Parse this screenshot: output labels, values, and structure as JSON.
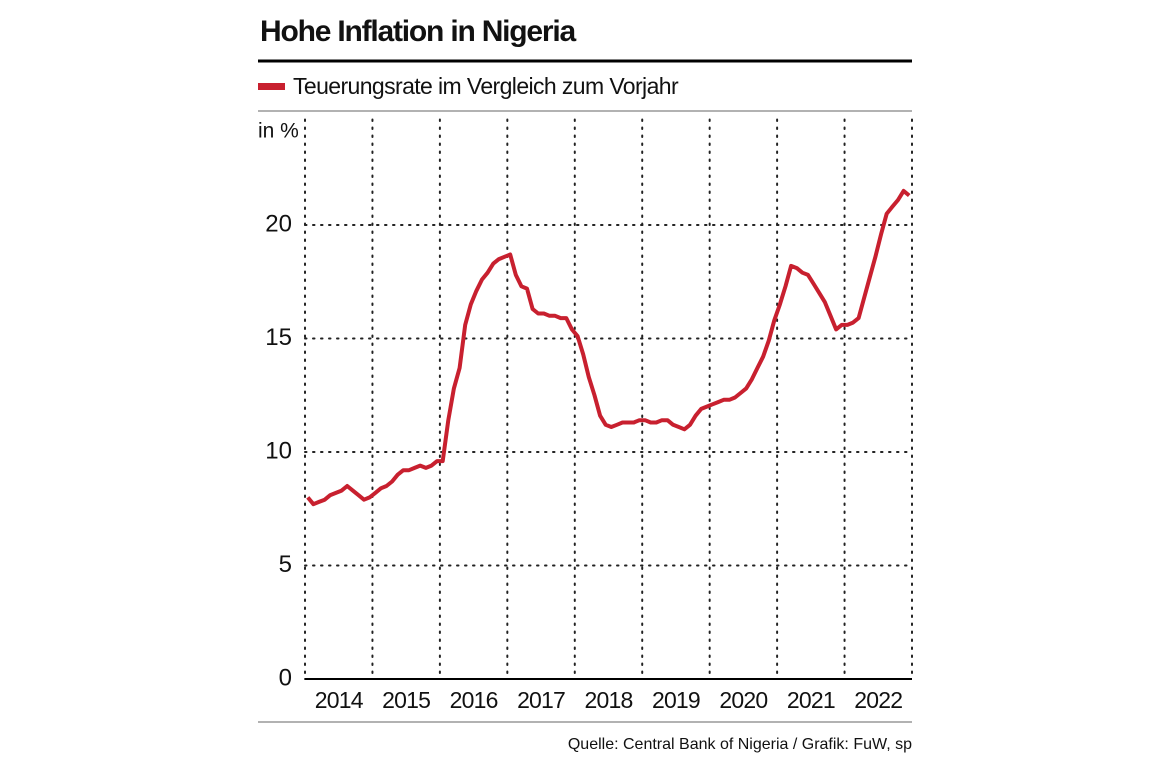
{
  "chart_data": {
    "type": "line",
    "title": "Hohe Inflation in Nigeria",
    "y_label": "in %",
    "source": "Quelle: Central Bank of Nigeria  / Grafik: FuW, sp",
    "xlim": [
      2014,
      2023
    ],
    "xticks": [
      {
        "value": 2014,
        "label": "2014"
      },
      {
        "value": 2015,
        "label": "2015"
      },
      {
        "value": 2016,
        "label": "2016"
      },
      {
        "value": 2017,
        "label": "2017"
      },
      {
        "value": 2018,
        "label": "2018"
      },
      {
        "value": 2019,
        "label": "2019"
      },
      {
        "value": 2020,
        "label": "2020"
      },
      {
        "value": 2021,
        "label": "2021"
      },
      {
        "value": 2022,
        "label": "2022"
      }
    ],
    "ylim": [
      0,
      25
    ],
    "yticks": [
      0,
      5,
      10,
      15,
      20
    ],
    "grid": true,
    "x": [
      2014.042,
      2014.125,
      2014.208,
      2014.292,
      2014.375,
      2014.458,
      2014.542,
      2014.625,
      2014.708,
      2014.792,
      2014.875,
      2014.958,
      2015.042,
      2015.125,
      2015.208,
      2015.292,
      2015.375,
      2015.458,
      2015.542,
      2015.625,
      2015.708,
      2015.792,
      2015.875,
      2015.958,
      2016.042,
      2016.125,
      2016.208,
      2016.292,
      2016.375,
      2016.458,
      2016.542,
      2016.625,
      2016.708,
      2016.792,
      2016.875,
      2016.958,
      2017.042,
      2017.125,
      2017.208,
      2017.292,
      2017.375,
      2017.458,
      2017.542,
      2017.625,
      2017.708,
      2017.792,
      2017.875,
      2017.958,
      2018.042,
      2018.125,
      2018.208,
      2018.292,
      2018.375,
      2018.458,
      2018.542,
      2018.625,
      2018.708,
      2018.792,
      2018.875,
      2018.958,
      2019.042,
      2019.125,
      2019.208,
      2019.292,
      2019.375,
      2019.458,
      2019.542,
      2019.625,
      2019.708,
      2019.792,
      2019.875,
      2019.958,
      2020.042,
      2020.125,
      2020.208,
      2020.292,
      2020.375,
      2020.458,
      2020.542,
      2020.625,
      2020.708,
      2020.792,
      2020.875,
      2020.958,
      2021.042,
      2021.125,
      2021.208,
      2021.292,
      2021.375,
      2021.458,
      2021.542,
      2021.625,
      2021.708,
      2021.792,
      2021.875,
      2021.958,
      2022.042,
      2022.125,
      2022.208,
      2022.292,
      2022.375,
      2022.458,
      2022.542,
      2022.625,
      2022.708,
      2022.792,
      2022.875,
      2022.958
    ],
    "series": [
      {
        "name": "Teuerungsrate im Vergleich zum Vorjahr",
        "color": "#c8202f",
        "values": [
          8.0,
          7.7,
          7.8,
          7.9,
          8.1,
          8.2,
          8.3,
          8.5,
          8.3,
          8.1,
          7.9,
          8.0,
          8.2,
          8.4,
          8.5,
          8.7,
          9.0,
          9.2,
          9.2,
          9.3,
          9.4,
          9.3,
          9.4,
          9.6,
          9.6,
          11.4,
          12.8,
          13.7,
          15.6,
          16.5,
          17.1,
          17.6,
          17.9,
          18.3,
          18.5,
          18.6,
          18.7,
          17.8,
          17.3,
          17.2,
          16.3,
          16.1,
          16.1,
          16.0,
          16.0,
          15.9,
          15.9,
          15.4,
          15.1,
          14.3,
          13.3,
          12.5,
          11.6,
          11.2,
          11.1,
          11.2,
          11.3,
          11.3,
          11.3,
          11.4,
          11.4,
          11.3,
          11.3,
          11.4,
          11.4,
          11.2,
          11.1,
          11.0,
          11.2,
          11.6,
          11.9,
          12.0,
          12.1,
          12.2,
          12.3,
          12.3,
          12.4,
          12.6,
          12.8,
          13.2,
          13.7,
          14.2,
          14.9,
          15.8,
          16.5,
          17.3,
          18.2,
          18.1,
          17.9,
          17.8,
          17.4,
          17.0,
          16.6,
          16.0,
          15.4,
          15.6,
          15.6,
          15.7,
          15.9,
          16.8,
          17.7,
          18.6,
          19.6,
          20.5,
          20.8,
          21.1,
          21.5,
          21.3
        ]
      }
    ]
  }
}
